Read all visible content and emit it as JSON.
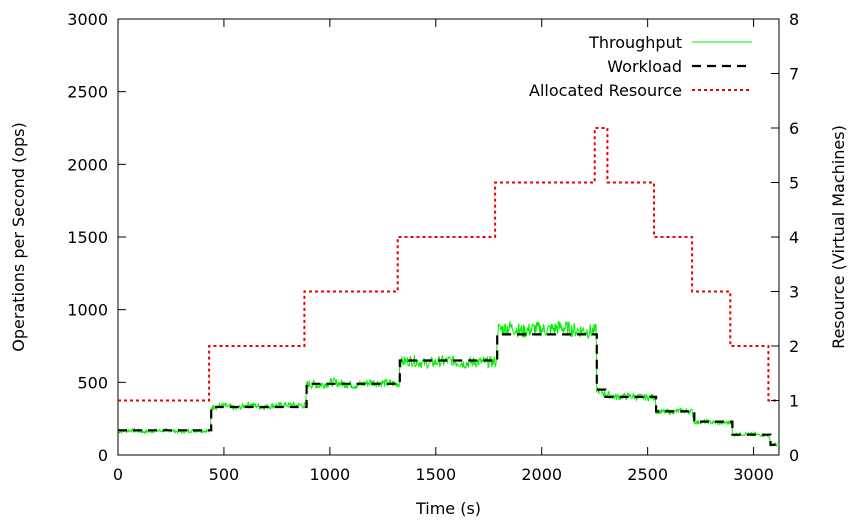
{
  "chart_data": {
    "type": "line",
    "title": "",
    "xlabel": "Time (s)",
    "ylabel": "Operations per Second (ops)",
    "y2label": "Resource (Virtual Machines)",
    "xlim": [
      0,
      3120
    ],
    "ylim": [
      0,
      3000
    ],
    "y2lim": [
      0,
      8
    ],
    "xticks": [
      "0",
      "500",
      "1000",
      "1500",
      "2000",
      "2500",
      "3000"
    ],
    "yticks": [
      "0",
      "500",
      "1000",
      "1500",
      "2000",
      "2500",
      "3000"
    ],
    "y2ticks": [
      "0",
      "1",
      "2",
      "3",
      "4",
      "5",
      "6",
      "7",
      "8"
    ],
    "grid": false,
    "legend_position": "top-right",
    "series": [
      {
        "name": "Throughput",
        "axis": "left",
        "color": "#00ee00",
        "style": "solid-noisy",
        "x": [
          0,
          60,
          120,
          180,
          240,
          300,
          360,
          430,
          440,
          500,
          560,
          620,
          680,
          740,
          800,
          880,
          890,
          950,
          1010,
          1070,
          1130,
          1190,
          1250,
          1320,
          1330,
          1390,
          1450,
          1510,
          1570,
          1630,
          1690,
          1780,
          1790,
          1850,
          1910,
          1970,
          2030,
          2090,
          2150,
          2250,
          2260,
          2300,
          2350,
          2420,
          2480,
          2530,
          2540,
          2600,
          2660,
          2710,
          2720,
          2780,
          2840,
          2890,
          2900,
          2960,
          3020,
          3070,
          3080,
          3120
        ],
        "y": [
          160,
          170,
          160,
          165,
          170,
          160,
          168,
          165,
          330,
          340,
          320,
          350,
          330,
          340,
          345,
          340,
          490,
          480,
          500,
          490,
          480,
          500,
          495,
          490,
          640,
          650,
          630,
          640,
          650,
          630,
          640,
          640,
          860,
          880,
          850,
          870,
          860,
          880,
          860,
          850,
          450,
          420,
          400,
          405,
          395,
          400,
          300,
          295,
          305,
          300,
          225,
          230,
          220,
          225,
          140,
          145,
          140,
          135,
          75,
          70
        ]
      },
      {
        "name": "Workload",
        "axis": "left",
        "color": "#000000",
        "style": "dashed",
        "x": [
          0,
          440,
          440,
          890,
          890,
          1330,
          1330,
          1790,
          1790,
          2260,
          2260,
          2300,
          2300,
          2540,
          2540,
          2720,
          2720,
          2900,
          2900,
          3080,
          3080,
          3120
        ],
        "y": [
          170,
          170,
          330,
          330,
          490,
          490,
          650,
          650,
          830,
          830,
          450,
          450,
          400,
          400,
          300,
          300,
          230,
          230,
          140,
          140,
          70,
          70
        ]
      },
      {
        "name": "Allocated Resource",
        "axis": "right",
        "color": "#ee0000",
        "style": "dotted",
        "x": [
          0,
          430,
          430,
          880,
          880,
          1320,
          1320,
          1780,
          1780,
          2250,
          2250,
          2310,
          2310,
          2530,
          2530,
          2710,
          2710,
          2890,
          2890,
          3070,
          3070,
          3120
        ],
        "y": [
          1,
          1,
          2,
          2,
          3,
          3,
          4,
          4,
          5,
          5,
          6,
          6,
          5,
          5,
          4,
          4,
          3,
          3,
          2,
          2,
          1,
          1
        ]
      }
    ]
  }
}
